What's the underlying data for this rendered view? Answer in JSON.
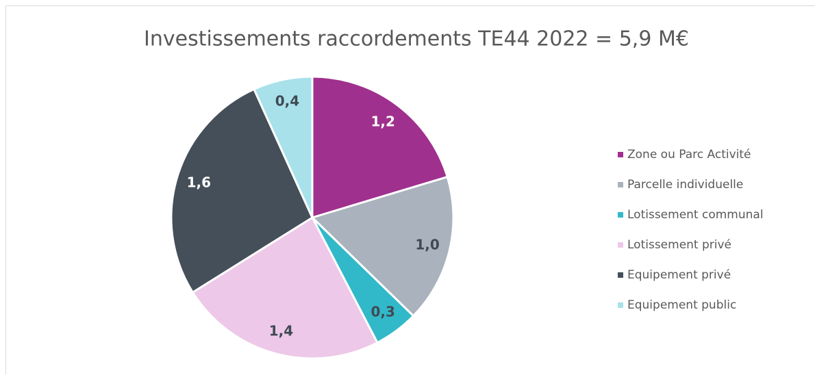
{
  "chart_data": {
    "type": "pie",
    "title": "Investissements raccordements TE44 2022 = 5,9 M€",
    "categories": [
      "Zone ou Parc Activité",
      "Parcelle individuelle",
      "Lotissement communal",
      "Lotissement privé",
      "Equipement privé",
      "Equipement public"
    ],
    "values": [
      1.2,
      1.0,
      0.3,
      1.4,
      1.6,
      0.4
    ],
    "value_labels": [
      "1,2",
      "1,0",
      "0,3",
      "1,4",
      "1,6",
      "0,4"
    ],
    "colors": [
      "#a0308e",
      "#aab2bd",
      "#31b9c9",
      "#edc8e8",
      "#454f59",
      "#a8e1ea"
    ],
    "legend": "right"
  }
}
